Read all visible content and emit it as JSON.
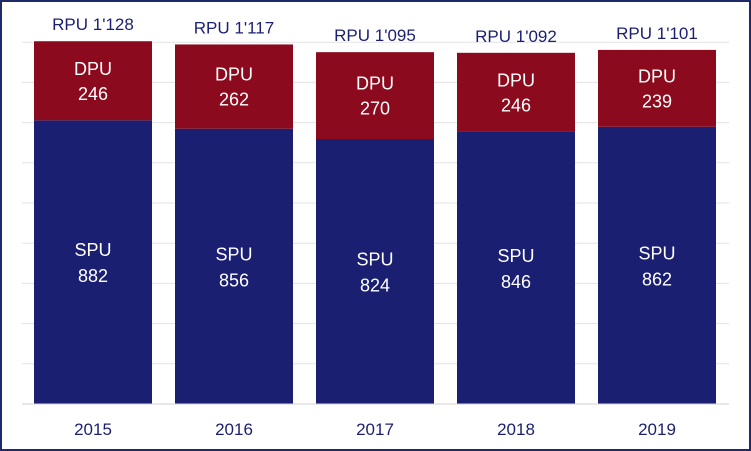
{
  "chart_data": {
    "type": "bar",
    "stacked": true,
    "categories": [
      "2015",
      "2016",
      "2017",
      "2018",
      "2019"
    ],
    "series": [
      {
        "name": "SPU",
        "values": [
          882,
          856,
          824,
          846,
          862
        ],
        "color": "#1a1f72"
      },
      {
        "name": "DPU",
        "values": [
          246,
          262,
          270,
          246,
          239
        ],
        "color": "#8c0a1e"
      }
    ],
    "totals": [
      "RPU 1'128",
      "RPU 1'117",
      "RPU 1'095",
      "RPU 1'092",
      "RPU 1'101"
    ],
    "ylim": [
      0,
      1250
    ],
    "grid": true,
    "title": "",
    "xlabel": "",
    "ylabel": ""
  }
}
